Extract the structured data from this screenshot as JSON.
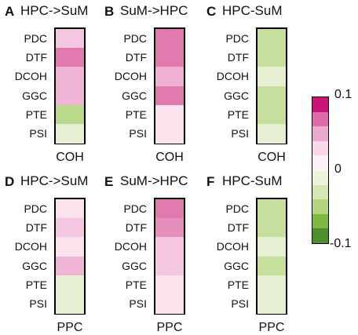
{
  "row_labels": [
    "PDC",
    "DTF",
    "DCOH",
    "GGC",
    "PTE",
    "PSI"
  ],
  "colorbar": {
    "ticks": [
      "0.1",
      "0",
      "-0.1"
    ],
    "colors": [
      "#c9147a",
      "#e06ba9",
      "#ecaad0",
      "#f7d7e8",
      "#fbf1f6",
      "#ecf4dc",
      "#d5e8b3",
      "#b4d680",
      "#7fb83e",
      "#4d8f2c"
    ]
  },
  "chart_data": [
    {
      "type": "heatmap",
      "panel": "A",
      "title": "HPC->SuM",
      "xlabel": "COH",
      "categories": [
        "PDC",
        "DTF",
        "DCOH",
        "GGC",
        "PTE",
        "PSI"
      ],
      "colors": [
        "#f4c6df",
        "#e27ab0",
        "#f0b5d5",
        "#f0b5d5",
        "#b9d98b",
        "#e7f0d3"
      ]
    },
    {
      "type": "heatmap",
      "panel": "B",
      "title": "SuM->HPC",
      "xlabel": "COH",
      "categories": [
        "PDC",
        "DTF",
        "DCOH",
        "GGC",
        "PTE",
        "PSI"
      ],
      "colors": [
        "#e27ab0",
        "#e27ab0",
        "#efb0d3",
        "#e27ab0",
        "#fbe3ee",
        "#fbe3ee"
      ]
    },
    {
      "type": "heatmap",
      "panel": "C",
      "title": "HPC-SuM",
      "xlabel": "COH",
      "categories": [
        "PDC",
        "DTF",
        "DCOH",
        "GGC",
        "PTE",
        "PSI"
      ],
      "colors": [
        "#c6df9c",
        "#c6df9c",
        "#e7f0d3",
        "#c6df9c",
        "#c6df9c",
        "#e7f0d3"
      ]
    },
    {
      "type": "heatmap",
      "panel": "D",
      "title": "HPC->SuM",
      "xlabel": "PPC",
      "categories": [
        "PDC",
        "DTF",
        "DCOH",
        "GGC",
        "PTE",
        "PSI"
      ],
      "colors": [
        "#fbe3ee",
        "#f4c6df",
        "#fbe3ee",
        "#f0b5d5",
        "#e7f0d3",
        "#e7f0d3"
      ]
    },
    {
      "type": "heatmap",
      "panel": "E",
      "title": "SuM->HPC",
      "xlabel": "PPC",
      "categories": [
        "PDC",
        "DTF",
        "DCOH",
        "GGC",
        "PTE",
        "PSI"
      ],
      "colors": [
        "#e27ab0",
        "#e68fbd",
        "#f4c6df",
        "#f4c6df",
        "#fbe3ee",
        "#fbe3ee"
      ]
    },
    {
      "type": "heatmap",
      "panel": "F",
      "title": "HPC-SuM",
      "xlabel": "PPC",
      "categories": [
        "PDC",
        "DTF",
        "DCOH",
        "GGC",
        "PTE",
        "PSI"
      ],
      "colors": [
        "#c6df9c",
        "#c6df9c",
        "#e7f0d3",
        "#c6df9c",
        "#e7f0d3",
        "#e7f0d3"
      ]
    }
  ]
}
